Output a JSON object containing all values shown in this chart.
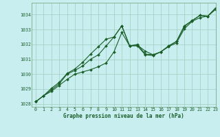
{
  "title": "Graphe pression niveau de la mer (hPa)",
  "bg_color": "#c8eef0",
  "grid_color": "#a0ccbb",
  "line_color": "#1a5e28",
  "spine_color": "#7aaa88",
  "xlim": [
    -0.5,
    23
  ],
  "ylim": [
    1027.8,
    1034.8
  ],
  "yticks": [
    1028,
    1029,
    1030,
    1031,
    1032,
    1033,
    1034
  ],
  "xticks": [
    0,
    1,
    2,
    3,
    4,
    5,
    6,
    7,
    8,
    9,
    10,
    11,
    12,
    13,
    14,
    15,
    16,
    17,
    18,
    19,
    20,
    21,
    22,
    23
  ],
  "series1": [
    1028.15,
    1028.55,
    1028.85,
    1029.25,
    1029.65,
    1030.0,
    1030.15,
    1030.3,
    1030.5,
    1030.75,
    1031.5,
    1032.8,
    1031.9,
    1031.95,
    1031.55,
    1031.3,
    1031.5,
    1031.85,
    1032.1,
    1033.05,
    1033.55,
    1033.8,
    1033.9,
    1034.35
  ],
  "series2": [
    1028.15,
    1028.55,
    1028.95,
    1029.35,
    1030.0,
    1030.25,
    1030.55,
    1031.0,
    1031.3,
    1031.9,
    1032.5,
    1033.25,
    1031.9,
    1032.0,
    1031.35,
    1031.3,
    1031.5,
    1031.9,
    1032.2,
    1033.25,
    1033.6,
    1033.95,
    1033.9,
    1034.45
  ],
  "series3": [
    1028.15,
    1028.55,
    1029.05,
    1029.45,
    1030.05,
    1030.35,
    1030.8,
    1031.35,
    1031.85,
    1032.35,
    1032.5,
    1033.25,
    1031.9,
    1031.9,
    1031.3,
    1031.25,
    1031.5,
    1031.9,
    1032.2,
    1033.2,
    1033.6,
    1033.95,
    1033.9,
    1034.45
  ],
  "ylabel_fontsize": 5.5,
  "xlabel_fontsize": 5.5,
  "tick_fontsize": 4.8,
  "lw": 0.8,
  "ms": 2.0
}
